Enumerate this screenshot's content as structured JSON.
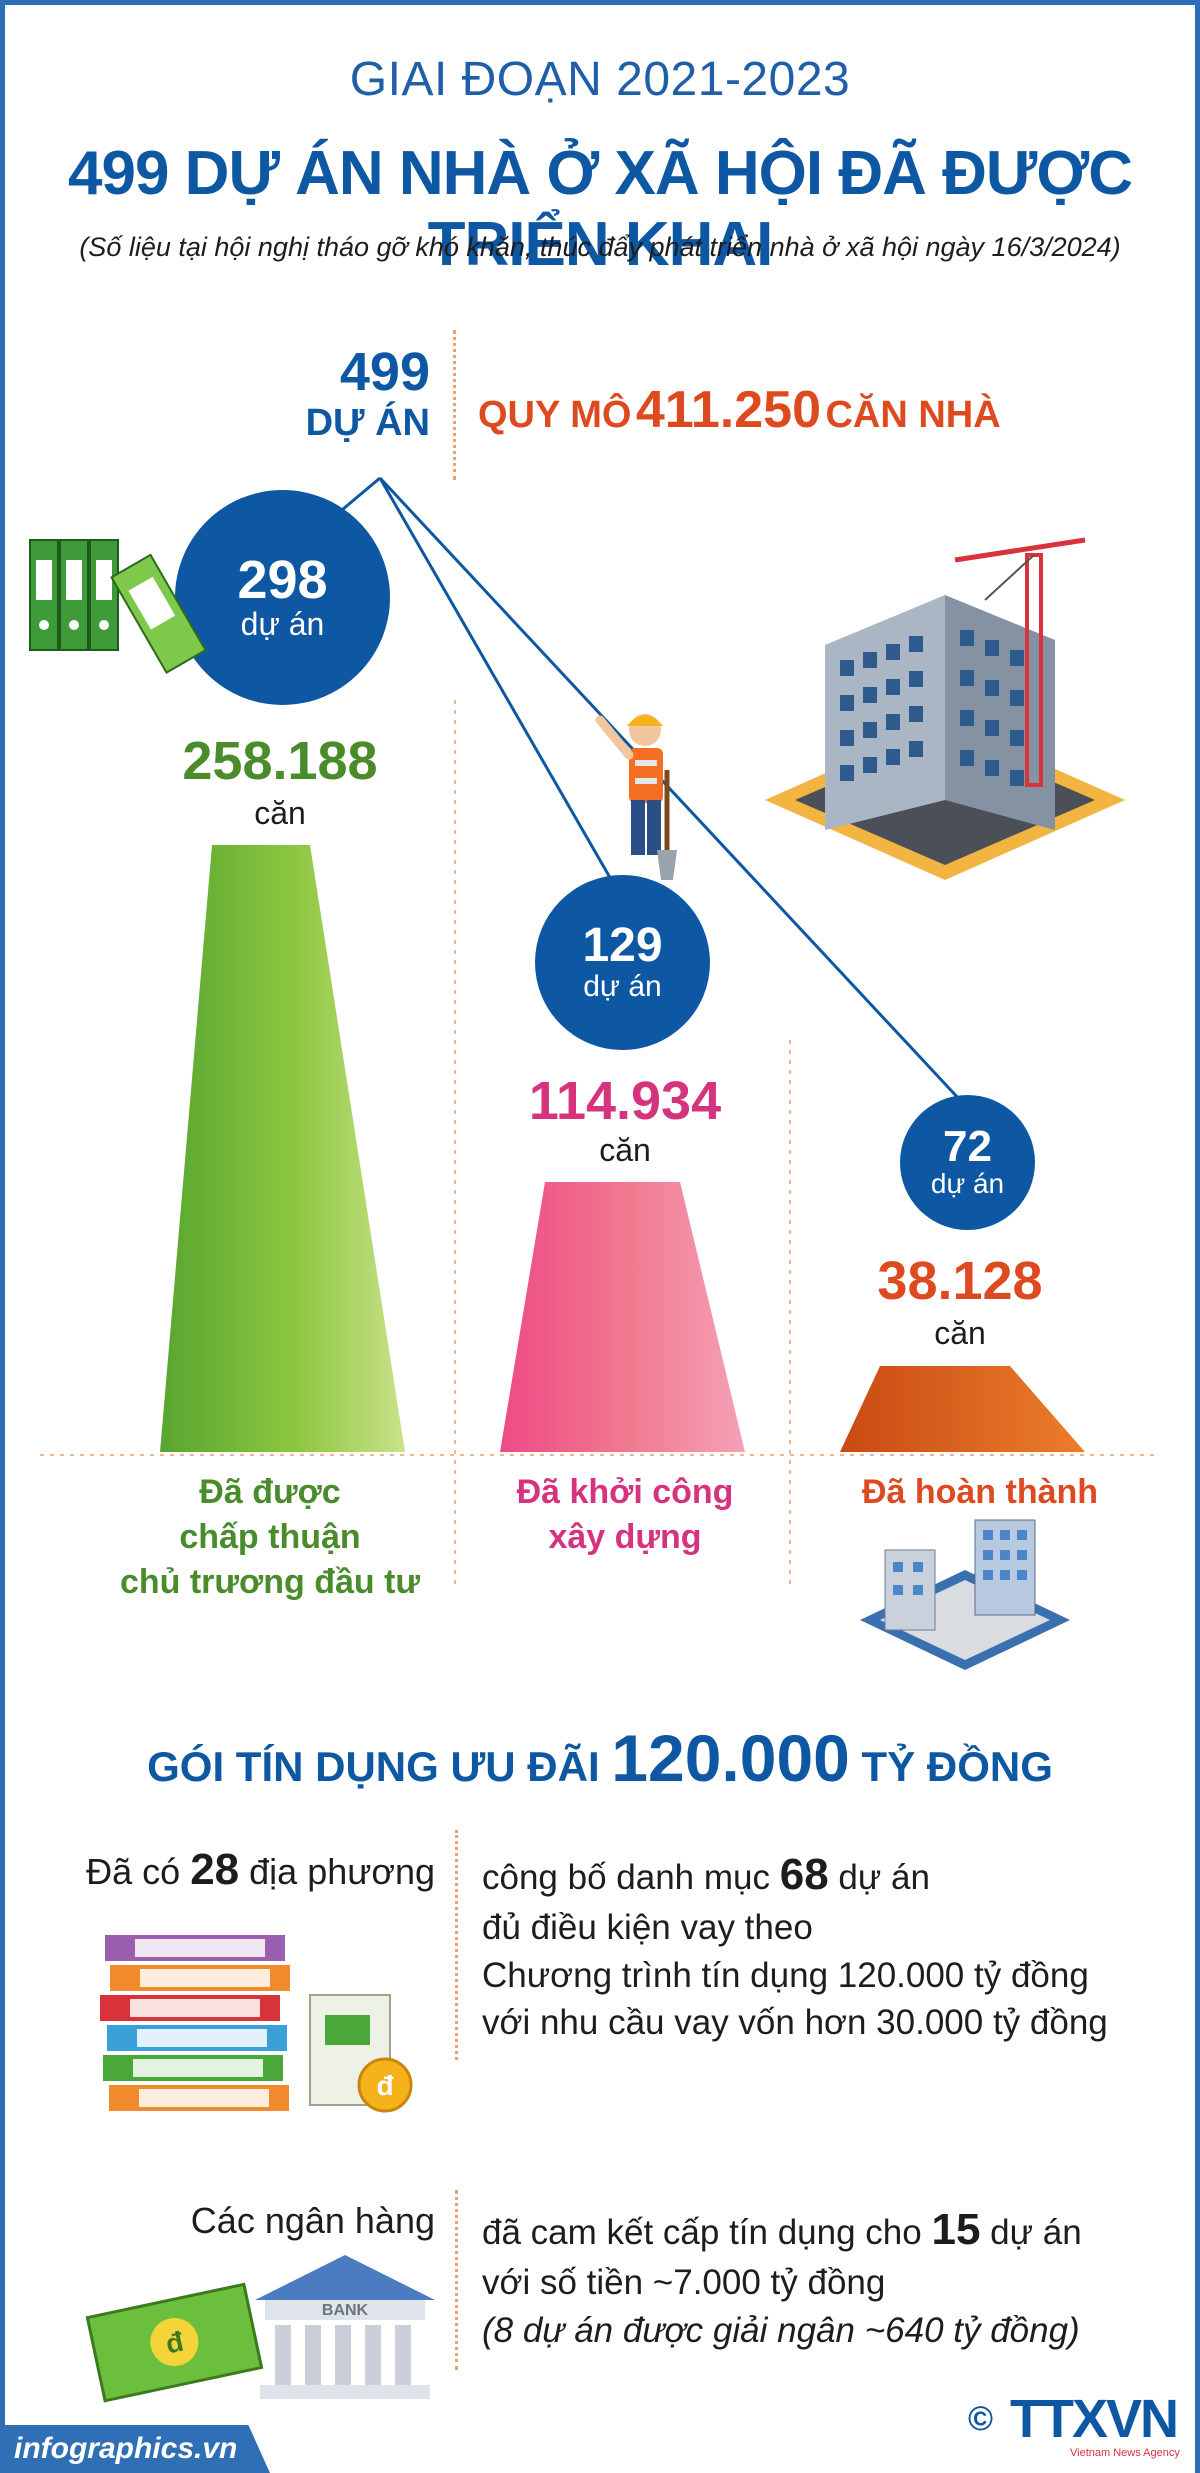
{
  "header": {
    "period": "GIAI ĐOẠN 2021-2023",
    "title": "499 DỰ ÁN NHÀ Ở XÃ HỘI ĐÃ ĐƯỢC TRIỂN KHAI",
    "subtitle": "(Số liệu tại hội nghị tháo gỡ khó khăn, thúc đẩy phát triển nhà ở xã hội ngày 16/3/2024)"
  },
  "summary": {
    "projects_number": "499",
    "projects_unit": "DỰ ÁN",
    "scale_prefix": "QUY MÔ",
    "scale_value": "411.250",
    "scale_suffix": "CĂN NHÀ"
  },
  "stages": [
    {
      "projects": "298",
      "projects_unit": "dự án",
      "homes": "258.188",
      "homes_unit": "căn",
      "label_lines": [
        "Đã được",
        "chấp thuận",
        "chủ trương đầu tư"
      ]
    },
    {
      "projects": "129",
      "projects_unit": "dự án",
      "homes": "114.934",
      "homes_unit": "căn",
      "label_lines": [
        "Đã khởi công",
        "xây dựng"
      ]
    },
    {
      "projects": "72",
      "projects_unit": "dự án",
      "homes": "38.128",
      "homes_unit": "căn",
      "label_lines": [
        "Đã hoàn thành"
      ]
    }
  ],
  "credit": {
    "prefix": "GÓI TÍN DỤNG ƯU ĐÃI",
    "amount": "120.000",
    "suffix": "TỶ ĐỒNG"
  },
  "localities": {
    "left_prefix": "Đã có",
    "left_number": "28",
    "left_suffix": "địa phương",
    "line1_prefix": "công bố danh mục",
    "line1_number": "68",
    "line1_suffix": "dự án",
    "line2": "đủ điều kiện vay theo",
    "line3": "Chương trình tín dụng 120.000 tỷ đồng",
    "line4": "với nhu cầu vay vốn hơn 30.000 tỷ đồng"
  },
  "banks": {
    "left": "Các ngân hàng",
    "line1_prefix": "đã cam kết cấp tín dụng cho",
    "line1_number": "15",
    "line1_suffix": "dự án",
    "line2": "với số tiền ~7.000 tỷ đồng",
    "line3": "(8 dự án được giải ngân ~640 tỷ đồng)",
    "bank_sign": "BANK",
    "currency_symbol": "đ"
  },
  "footer": {
    "site": "infographics.vn",
    "copyright": "©",
    "logo": "TTXVN",
    "agency": "Vietnam News Agency"
  },
  "colors": {
    "blue": "#0d57a3",
    "green": "#4a8b2c",
    "magenta": "#d6337f",
    "orange": "#de4a1f"
  }
}
